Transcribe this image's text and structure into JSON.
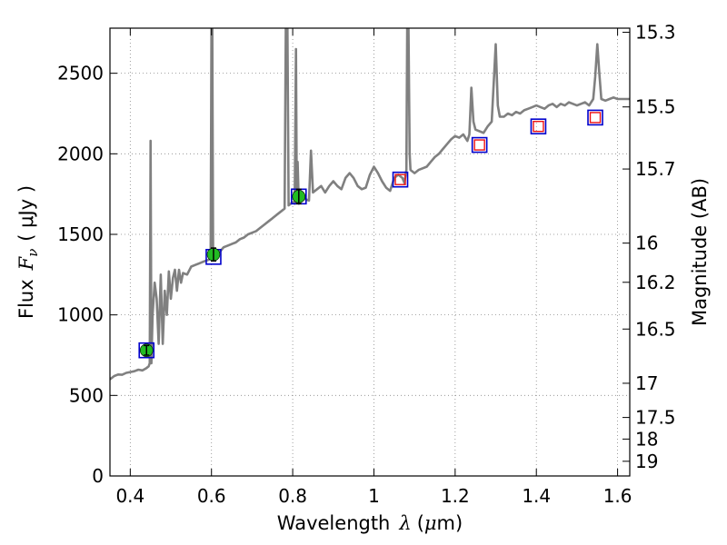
{
  "chart_data": {
    "type": "line",
    "title": "",
    "xlabel": {
      "prefix": "Wavelength",
      "symbol": "λ",
      "unit_open": "(",
      "unit_mu": "μ",
      "unit_rest": "m)"
    },
    "ylabel": {
      "prefix": "Flux",
      "symbol": "F",
      "subscript": "ν",
      "unit": "( μJy )"
    },
    "y2label": "Magnitude (AB)",
    "xlim": [
      0.35,
      1.63
    ],
    "ylim": [
      0,
      2780
    ],
    "grid": true,
    "x_ticks": [
      {
        "value": 0.4,
        "label": "0.4"
      },
      {
        "value": 0.6,
        "label": "0.6"
      },
      {
        "value": 0.8,
        "label": "0.8"
      },
      {
        "value": 1.0,
        "label": "1"
      },
      {
        "value": 1.2,
        "label": "1.2"
      },
      {
        "value": 1.4,
        "label": "1.4"
      },
      {
        "value": 1.6,
        "label": "1.6"
      }
    ],
    "y_ticks": [
      {
        "value": 0,
        "label": "0"
      },
      {
        "value": 500,
        "label": "500"
      },
      {
        "value": 1000,
        "label": "1000"
      },
      {
        "value": 1500,
        "label": "1500"
      },
      {
        "value": 2000,
        "label": "2000"
      },
      {
        "value": 2500,
        "label": "2500"
      }
    ],
    "y2_ticks": [
      {
        "mag": 15.3,
        "label": "15.3"
      },
      {
        "mag": 15.5,
        "label": "15.5"
      },
      {
        "mag": 15.7,
        "label": "15.7"
      },
      {
        "mag": 16.0,
        "label": "16"
      },
      {
        "mag": 16.2,
        "label": "16.2"
      },
      {
        "mag": 16.5,
        "label": "16.5"
      },
      {
        "mag": 17.0,
        "label": "17"
      },
      {
        "mag": 17.5,
        "label": "17.5"
      },
      {
        "mag": 18.0,
        "label": "18"
      },
      {
        "mag": 19.0,
        "label": "19"
      }
    ],
    "series": [
      {
        "name": "spectrum",
        "color": "#808080",
        "points": [
          [
            0.35,
            600
          ],
          [
            0.36,
            620
          ],
          [
            0.37,
            630
          ],
          [
            0.38,
            628
          ],
          [
            0.39,
            640
          ],
          [
            0.4,
            645
          ],
          [
            0.41,
            650
          ],
          [
            0.42,
            660
          ],
          [
            0.43,
            655
          ],
          [
            0.44,
            670
          ],
          [
            0.445,
            680
          ],
          [
            0.448,
            700
          ],
          [
            0.45,
            2080
          ],
          [
            0.452,
            700
          ],
          [
            0.455,
            1000
          ],
          [
            0.46,
            1200
          ],
          [
            0.465,
            1100
          ],
          [
            0.47,
            820
          ],
          [
            0.475,
            1250
          ],
          [
            0.48,
            820
          ],
          [
            0.485,
            1150
          ],
          [
            0.49,
            1000
          ],
          [
            0.495,
            1270
          ],
          [
            0.5,
            1100
          ],
          [
            0.505,
            1230
          ],
          [
            0.51,
            1280
          ],
          [
            0.515,
            1150
          ],
          [
            0.52,
            1280
          ],
          [
            0.525,
            1200
          ],
          [
            0.53,
            1260
          ],
          [
            0.54,
            1250
          ],
          [
            0.55,
            1300
          ],
          [
            0.56,
            1310
          ],
          [
            0.57,
            1320
          ],
          [
            0.58,
            1330
          ],
          [
            0.59,
            1340
          ],
          [
            0.595,
            1345
          ],
          [
            0.598,
            1350
          ],
          [
            0.6,
            2780
          ],
          [
            0.602,
            2780
          ],
          [
            0.604,
            1360
          ],
          [
            0.61,
            1380
          ],
          [
            0.62,
            1390
          ],
          [
            0.63,
            1420
          ],
          [
            0.64,
            1430
          ],
          [
            0.65,
            1440
          ],
          [
            0.66,
            1450
          ],
          [
            0.67,
            1470
          ],
          [
            0.68,
            1480
          ],
          [
            0.69,
            1500
          ],
          [
            0.7,
            1510
          ],
          [
            0.71,
            1520
          ],
          [
            0.72,
            1540
          ],
          [
            0.73,
            1560
          ],
          [
            0.74,
            1580
          ],
          [
            0.75,
            1600
          ],
          [
            0.76,
            1620
          ],
          [
            0.77,
            1640
          ],
          [
            0.78,
            1660
          ],
          [
            0.783,
            2780
          ],
          [
            0.787,
            2780
          ],
          [
            0.79,
            1680
          ],
          [
            0.8,
            1700
          ],
          [
            0.805,
            1690
          ],
          [
            0.808,
            2650
          ],
          [
            0.81,
            1700
          ],
          [
            0.812,
            1950
          ],
          [
            0.815,
            1690
          ],
          [
            0.82,
            1740
          ],
          [
            0.83,
            1720
          ],
          [
            0.84,
            1710
          ],
          [
            0.845,
            2020
          ],
          [
            0.85,
            1760
          ],
          [
            0.86,
            1780
          ],
          [
            0.87,
            1800
          ],
          [
            0.88,
            1760
          ],
          [
            0.89,
            1800
          ],
          [
            0.9,
            1830
          ],
          [
            0.91,
            1800
          ],
          [
            0.92,
            1780
          ],
          [
            0.93,
            1850
          ],
          [
            0.94,
            1880
          ],
          [
            0.95,
            1850
          ],
          [
            0.96,
            1800
          ],
          [
            0.97,
            1780
          ],
          [
            0.98,
            1790
          ],
          [
            0.99,
            1870
          ],
          [
            1.0,
            1920
          ],
          [
            1.01,
            1880
          ],
          [
            1.02,
            1830
          ],
          [
            1.03,
            1790
          ],
          [
            1.04,
            1770
          ],
          [
            1.05,
            1850
          ],
          [
            1.06,
            1870
          ],
          [
            1.07,
            1850
          ],
          [
            1.075,
            1820
          ],
          [
            1.08,
            1900
          ],
          [
            1.082,
            2780
          ],
          [
            1.085,
            2780
          ],
          [
            1.088,
            2000
          ],
          [
            1.09,
            1900
          ],
          [
            1.1,
            1880
          ],
          [
            1.11,
            1900
          ],
          [
            1.12,
            1910
          ],
          [
            1.13,
            1920
          ],
          [
            1.14,
            1950
          ],
          [
            1.15,
            1980
          ],
          [
            1.16,
            2000
          ],
          [
            1.17,
            2030
          ],
          [
            1.18,
            2060
          ],
          [
            1.19,
            2090
          ],
          [
            1.2,
            2110
          ],
          [
            1.21,
            2100
          ],
          [
            1.22,
            2120
          ],
          [
            1.23,
            2080
          ],
          [
            1.235,
            2120
          ],
          [
            1.24,
            2410
          ],
          [
            1.245,
            2200
          ],
          [
            1.25,
            2150
          ],
          [
            1.26,
            2140
          ],
          [
            1.27,
            2130
          ],
          [
            1.28,
            2170
          ],
          [
            1.29,
            2200
          ],
          [
            1.3,
            2680
          ],
          [
            1.305,
            2300
          ],
          [
            1.31,
            2230
          ],
          [
            1.32,
            2230
          ],
          [
            1.33,
            2250
          ],
          [
            1.34,
            2240
          ],
          [
            1.35,
            2260
          ],
          [
            1.36,
            2250
          ],
          [
            1.37,
            2270
          ],
          [
            1.38,
            2280
          ],
          [
            1.39,
            2290
          ],
          [
            1.4,
            2300
          ],
          [
            1.41,
            2290
          ],
          [
            1.42,
            2280
          ],
          [
            1.43,
            2300
          ],
          [
            1.44,
            2310
          ],
          [
            1.45,
            2290
          ],
          [
            1.46,
            2310
          ],
          [
            1.47,
            2300
          ],
          [
            1.48,
            2320
          ],
          [
            1.49,
            2310
          ],
          [
            1.5,
            2300
          ],
          [
            1.51,
            2310
          ],
          [
            1.52,
            2320
          ],
          [
            1.53,
            2300
          ],
          [
            1.54,
            2340
          ],
          [
            1.545,
            2480
          ],
          [
            1.55,
            2680
          ],
          [
            1.555,
            2500
          ],
          [
            1.56,
            2340
          ],
          [
            1.57,
            2330
          ],
          [
            1.58,
            2340
          ],
          [
            1.59,
            2350
          ],
          [
            1.6,
            2340
          ],
          [
            1.61,
            2340
          ],
          [
            1.62,
            2340
          ],
          [
            1.63,
            2340
          ]
        ]
      }
    ],
    "model_points_blue": [
      {
        "x": 0.44,
        "y": 780
      },
      {
        "x": 0.605,
        "y": 1360
      },
      {
        "x": 0.815,
        "y": 1735
      },
      {
        "x": 1.065,
        "y": 1840
      },
      {
        "x": 1.26,
        "y": 2055
      },
      {
        "x": 1.405,
        "y": 2170
      },
      {
        "x": 1.545,
        "y": 2225
      }
    ],
    "model_points_red": [
      {
        "x": 1.065,
        "y": 1840
      },
      {
        "x": 1.26,
        "y": 2055
      },
      {
        "x": 1.405,
        "y": 2170
      },
      {
        "x": 1.545,
        "y": 2225
      }
    ],
    "observed_points": [
      {
        "x": 0.44,
        "y": 780,
        "err": 30
      },
      {
        "x": 0.605,
        "y": 1375,
        "err": 40
      },
      {
        "x": 0.815,
        "y": 1735,
        "err": 45
      }
    ],
    "colors": {
      "spectrum": "#808080",
      "model_box": "#0000cc",
      "model_box_red": "#ee1111",
      "observed_fill": "#22bb22",
      "grid": "#888888"
    }
  }
}
